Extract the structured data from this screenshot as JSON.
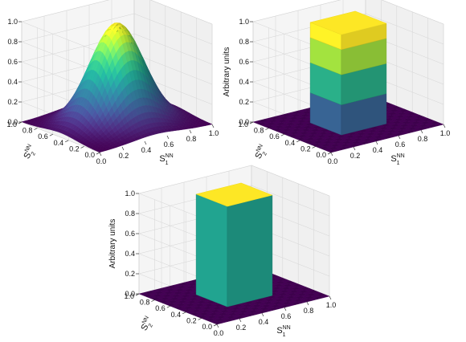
{
  "chart_data": [
    {
      "type": "surface",
      "surface": "gaussian",
      "zlabel": "Arbitrary units",
      "xlabel_main": "S",
      "xlabel_sub": "1",
      "xlabel_sup": "NN",
      "ylabel_main": "S",
      "ylabel_sub": "2",
      "ylabel_sup": "NN",
      "xlim": [
        0,
        1
      ],
      "ylim": [
        0,
        1
      ],
      "zlim": [
        0,
        1
      ],
      "x_ticks": [
        "0.0",
        "0.2",
        "0.4",
        "0.6",
        "0.8",
        "1.0"
      ],
      "y_ticks": [
        "0.0",
        "0.2",
        "0.4",
        "0.6",
        "0.8",
        "1.0"
      ],
      "z_ticks": [
        "0.0",
        "0.2",
        "0.4",
        "0.6",
        "0.8",
        "1.0"
      ],
      "peak": {
        "x": 0.5,
        "y": 0.5,
        "z": 1.0
      },
      "colormap": "viridis",
      "grid": true
    },
    {
      "type": "surface",
      "surface": "stepped-box",
      "zlabel": "Arbitrary units",
      "xlabel_main": "S",
      "xlabel_sub": "1",
      "xlabel_sup": "NN",
      "ylabel_main": "S",
      "ylabel_sub": "2",
      "ylabel_sup": "NN",
      "xlim": [
        0,
        1
      ],
      "ylim": [
        0,
        1
      ],
      "zlim": [
        0,
        1
      ],
      "x_ticks": [
        "0.0",
        "0.2",
        "0.4",
        "0.6",
        "0.8",
        "1.0"
      ],
      "y_ticks": [
        "0.0",
        "0.2",
        "0.4",
        "0.6",
        "0.8",
        "1.0"
      ],
      "z_ticks": [
        "0.0",
        "0.2",
        "0.4",
        "0.6",
        "0.8",
        "1.0"
      ],
      "box": {
        "x": [
          0.3,
          0.7
        ],
        "y": [
          0.3,
          0.7
        ],
        "z": 1.0
      },
      "bands": [
        0.3,
        0.6,
        0.85,
        1.0
      ],
      "colormap": "viridis",
      "grid": true
    },
    {
      "type": "surface",
      "surface": "box",
      "zlabel": "Arbitrary units",
      "xlabel_main": "S",
      "xlabel_sub": "1",
      "xlabel_sup": "NN",
      "ylabel_main": "S",
      "ylabel_sub": "2",
      "ylabel_sup": "NN",
      "xlim": [
        0,
        1
      ],
      "ylim": [
        0,
        1
      ],
      "zlim": [
        0,
        1
      ],
      "x_ticks": [
        "0.0",
        "0.2",
        "0.4",
        "0.6",
        "0.8",
        "1.0"
      ],
      "y_ticks": [
        "0.0",
        "0.2",
        "0.4",
        "0.6",
        "0.8",
        "1.0"
      ],
      "z_ticks": [
        "0.0",
        "0.2",
        "0.4",
        "0.6",
        "0.8",
        "1.0"
      ],
      "box": {
        "x": [
          0.3,
          0.7
        ],
        "y": [
          0.3,
          0.7
        ],
        "z": 1.0
      },
      "colormap": "viridis",
      "grid": true
    }
  ]
}
